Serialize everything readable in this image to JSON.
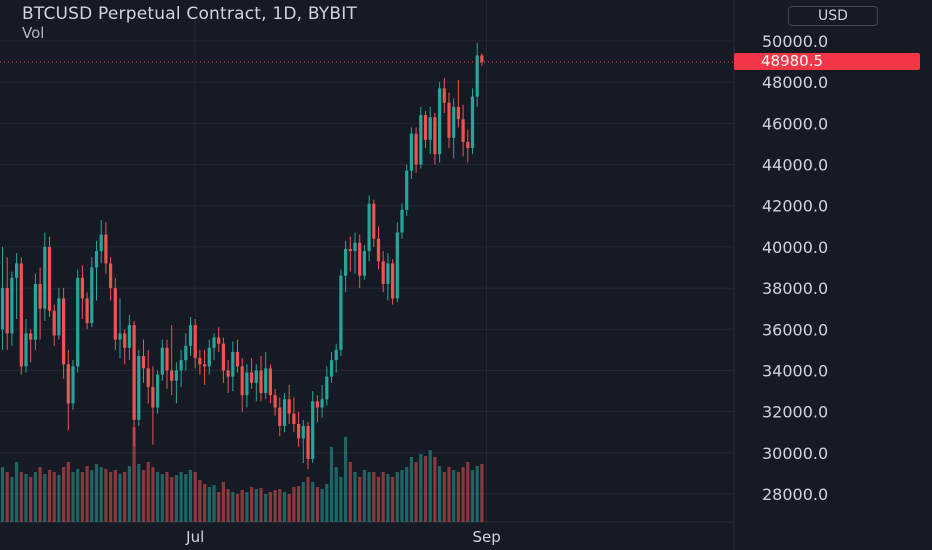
{
  "chart": {
    "title": "BTCUSD Perpetual Contract, 1D, BYBIT",
    "volume_label": "Vol",
    "currency": "USD",
    "last_price": "48980.5",
    "colors": {
      "background": "#161a25",
      "grid": "#242733",
      "up": "#26a69a",
      "down": "#ef5350",
      "up_volume": "#26a69a88",
      "down_volume": "#ef535088",
      "price_tag": "#f23645"
    }
  },
  "chart_data": {
    "type": "candlestick",
    "title": "BTCUSD Perpetual Contract, 1D, BYBIT",
    "y_axis": {
      "ticks": [
        28000,
        30000,
        32000,
        34000,
        36000,
        38000,
        40000,
        42000,
        44000,
        46000,
        48000,
        50000
      ],
      "tick_labels": [
        "28000.0",
        "30000.0",
        "32000.0",
        "34000.0",
        "36000.0",
        "38000.0",
        "40000.0",
        "42000.0",
        "44000.0",
        "46000.0",
        "48000.0",
        "50000.0"
      ],
      "range": [
        26000,
        51500
      ]
    },
    "x_axis": {
      "labels": [
        {
          "label": "Jul",
          "index": 41
        },
        {
          "label": "Sep",
          "index": 103
        }
      ]
    },
    "last_price": 48980.5,
    "grid": true,
    "candles": [
      [
        36000,
        40000,
        35000,
        38000
      ],
      [
        38000,
        39500,
        35000,
        35800
      ],
      [
        35800,
        38800,
        35200,
        38500
      ],
      [
        38500,
        39700,
        36500,
        39200
      ],
      [
        39200,
        39500,
        33800,
        34200
      ],
      [
        34200,
        36500,
        33900,
        35800
      ],
      [
        35800,
        36000,
        34400,
        35500
      ],
      [
        35500,
        38700,
        35000,
        38200
      ],
      [
        38200,
        39000,
        35500,
        37000
      ],
      [
        37000,
        40700,
        36400,
        40000
      ],
      [
        40000,
        40500,
        36600,
        36900
      ],
      [
        36900,
        37200,
        35200,
        35700
      ],
      [
        35700,
        38000,
        35500,
        37500
      ],
      [
        37500,
        38000,
        33600,
        34300
      ],
      [
        34300,
        35000,
        31100,
        32400
      ],
      [
        32400,
        34500,
        32100,
        34200
      ],
      [
        34200,
        38900,
        33900,
        38500
      ],
      [
        38500,
        39100,
        36500,
        37500
      ],
      [
        37500,
        37800,
        36000,
        36300
      ],
      [
        36300,
        39500,
        36100,
        39000
      ],
      [
        39000,
        40300,
        37400,
        39800
      ],
      [
        39800,
        41300,
        39200,
        40600
      ],
      [
        40600,
        41200,
        38700,
        39200
      ],
      [
        39200,
        39500,
        37400,
        38000
      ],
      [
        38000,
        38500,
        35000,
        35500
      ],
      [
        35500,
        37500,
        34600,
        35800
      ],
      [
        35800,
        36000,
        34300,
        35100
      ],
      [
        35100,
        36700,
        34500,
        36200
      ],
      [
        36200,
        36400,
        30300,
        31600
      ],
      [
        31600,
        35000,
        31300,
        34700
      ],
      [
        34700,
        35500,
        33400,
        34100
      ],
      [
        34100,
        35000,
        32400,
        33200
      ],
      [
        33200,
        34200,
        30400,
        32200
      ],
      [
        32200,
        34000,
        31900,
        33800
      ],
      [
        33800,
        35500,
        33500,
        35100
      ],
      [
        35100,
        35500,
        33100,
        34000
      ],
      [
        34000,
        36200,
        32800,
        33500
      ],
      [
        33500,
        34400,
        32400,
        34000
      ],
      [
        34000,
        35000,
        33200,
        34500
      ],
      [
        34500,
        35800,
        34000,
        35200
      ],
      [
        35200,
        36600,
        34700,
        36200
      ],
      [
        36200,
        36500,
        34100,
        34600
      ],
      [
        34600,
        35000,
        33800,
        34300
      ],
      [
        34300,
        35000,
        33300,
        34200
      ],
      [
        34200,
        35500,
        33800,
        35100
      ],
      [
        35100,
        35800,
        34500,
        35600
      ],
      [
        35600,
        36100,
        34900,
        35300
      ],
      [
        35300,
        35600,
        33400,
        34000
      ],
      [
        34000,
        34500,
        32900,
        33700
      ],
      [
        33700,
        35400,
        33000,
        34900
      ],
      [
        34900,
        35500,
        33900,
        34200
      ],
      [
        34200,
        34600,
        32000,
        32800
      ],
      [
        32800,
        34300,
        32200,
        33900
      ],
      [
        33900,
        34600,
        33100,
        33400
      ],
      [
        33400,
        34300,
        32500,
        34000
      ],
      [
        34000,
        34700,
        32500,
        32900
      ],
      [
        32900,
        34900,
        32600,
        34100
      ],
      [
        34100,
        34300,
        32400,
        32800
      ],
      [
        32800,
        33100,
        31800,
        32200
      ],
      [
        32200,
        32700,
        30800,
        31300
      ],
      [
        31300,
        32900,
        31000,
        32600
      ],
      [
        32600,
        33300,
        31400,
        31900
      ],
      [
        31900,
        32700,
        31000,
        31400
      ],
      [
        31400,
        32000,
        30300,
        30700
      ],
      [
        30700,
        31600,
        29500,
        31300
      ],
      [
        31300,
        31500,
        29200,
        29700
      ],
      [
        29700,
        33000,
        29500,
        32500
      ],
      [
        32500,
        32800,
        31500,
        32200
      ],
      [
        32200,
        33300,
        31700,
        32600
      ],
      [
        32600,
        34200,
        32300,
        33700
      ],
      [
        33700,
        34900,
        33400,
        34500
      ],
      [
        34500,
        35300,
        33900,
        35000
      ],
      [
        35000,
        38900,
        34700,
        38600
      ],
      [
        38600,
        40300,
        37800,
        39900
      ],
      [
        39900,
        40500,
        38800,
        39800
      ],
      [
        39800,
        40700,
        38700,
        40200
      ],
      [
        40200,
        40600,
        38000,
        38600
      ],
      [
        38600,
        40100,
        38400,
        39800
      ],
      [
        39800,
        42500,
        39300,
        42100
      ],
      [
        42100,
        42300,
        40000,
        40400
      ],
      [
        40400,
        41000,
        38900,
        39300
      ],
      [
        39300,
        39800,
        37800,
        38200
      ],
      [
        38200,
        39700,
        37400,
        39200
      ],
      [
        39200,
        39400,
        37200,
        37500
      ],
      [
        37500,
        41200,
        37300,
        40700
      ],
      [
        40700,
        42100,
        40400,
        41800
      ],
      [
        41800,
        44000,
        41500,
        43700
      ],
      [
        43700,
        45800,
        43300,
        45500
      ],
      [
        45500,
        45800,
        43600,
        44000
      ],
      [
        44000,
        46800,
        43800,
        46400
      ],
      [
        46400,
        46600,
        44800,
        45200
      ],
      [
        45200,
        46800,
        44500,
        46300
      ],
      [
        46300,
        46500,
        44000,
        44500
      ],
      [
        44500,
        48000,
        44100,
        47700
      ],
      [
        47700,
        48200,
        46500,
        47000
      ],
      [
        47000,
        47500,
        44800,
        45300
      ],
      [
        45300,
        47200,
        44300,
        46800
      ],
      [
        46800,
        48100,
        45800,
        46200
      ],
      [
        46200,
        46900,
        44400,
        45100
      ],
      [
        45100,
        45700,
        44100,
        44800
      ],
      [
        44800,
        47700,
        44500,
        47300
      ],
      [
        47300,
        49900,
        46800,
        49300
      ],
      [
        49300,
        49400,
        48800,
        48980.5
      ]
    ],
    "volume": {
      "note": "relative volume bars shown at bottom (normalized 0-1)",
      "values": [
        0.55,
        0.5,
        0.45,
        0.6,
        0.5,
        0.48,
        0.45,
        0.5,
        0.55,
        0.48,
        0.52,
        0.5,
        0.47,
        0.55,
        0.6,
        0.5,
        0.53,
        0.5,
        0.56,
        0.52,
        0.58,
        0.55,
        0.53,
        0.5,
        0.52,
        0.48,
        0.5,
        0.56,
        0.95,
        0.58,
        0.52,
        0.6,
        0.55,
        0.5,
        0.48,
        0.5,
        0.45,
        0.47,
        0.5,
        0.48,
        0.52,
        0.5,
        0.42,
        0.38,
        0.35,
        0.37,
        0.3,
        0.4,
        0.33,
        0.3,
        0.28,
        0.32,
        0.3,
        0.35,
        0.33,
        0.34,
        0.28,
        0.3,
        0.32,
        0.33,
        0.3,
        0.28,
        0.35,
        0.36,
        0.4,
        0.45,
        0.4,
        0.35,
        0.33,
        0.38,
        0.75,
        0.55,
        0.45,
        0.85,
        0.6,
        0.5,
        0.45,
        0.52,
        0.5,
        0.5,
        0.45,
        0.5,
        0.48,
        0.45,
        0.5,
        0.52,
        0.55,
        0.65,
        0.6,
        0.68,
        0.66,
        0.72,
        0.65,
        0.56,
        0.5,
        0.55,
        0.52,
        0.5,
        0.55,
        0.6,
        0.52,
        0.56,
        0.58,
        0.56
      ]
    }
  }
}
